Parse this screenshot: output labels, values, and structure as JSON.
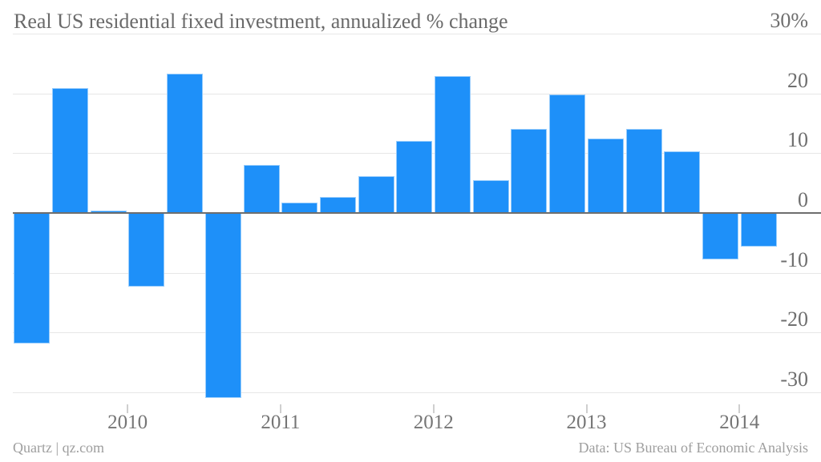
{
  "header": {
    "title": "Real US residential fixed investment, annualized % change"
  },
  "footer": {
    "left": "Quartz | qz.com",
    "right": "Data: US Bureau of Economic Analysis"
  },
  "colors": {
    "bar": "#1e90f9",
    "bar_edge": "rgba(255,255,255,0.55)",
    "gridline": "#e7e7e7",
    "zero_axis": "#6e6e6e",
    "title_text": "#6a6a6a",
    "axis_label_text": "#6f6f6f",
    "year_label_text": "#757575",
    "tick_mark": "#cfcfcf",
    "footer_text": "#9e9e9e"
  },
  "chart_data": {
    "type": "bar",
    "title": "Real US residential fixed investment, annualized % change",
    "ylabel": "annualized % change",
    "xlabel": "",
    "x": [
      "2009 Q2",
      "2009 Q3",
      "2009 Q4",
      "2010 Q1",
      "2010 Q2",
      "2010 Q3",
      "2010 Q4",
      "2011 Q1",
      "2011 Q2",
      "2011 Q3",
      "2011 Q4",
      "2012 Q1",
      "2012 Q2",
      "2012 Q3",
      "2012 Q4",
      "2013 Q1",
      "2013 Q2",
      "2013 Q3",
      "2013 Q4",
      "2014 Q1"
    ],
    "values": [
      -21.8,
      20.9,
      0.4,
      -12.3,
      23.3,
      -30.9,
      8.0,
      1.7,
      2.7,
      6.2,
      12.1,
      22.9,
      5.5,
      14.0,
      19.8,
      12.5,
      14.1,
      10.3,
      -7.8,
      -5.6
    ],
    "yticks": [
      30,
      20,
      10,
      0,
      -10,
      -20,
      -30
    ],
    "ytick_labels": [
      "30%",
      "20",
      "10",
      "0",
      "-10",
      "-20",
      "-30"
    ],
    "xtick_labels": [
      "2010",
      "2011",
      "2012",
      "2013",
      "2014"
    ],
    "xtick_boundary_bar_index": [
      3,
      7,
      11,
      15,
      19
    ],
    "ylim": [
      -31,
      30
    ],
    "grid": "horizontal",
    "legend": "none",
    "bar_color": "#1e90f9"
  }
}
